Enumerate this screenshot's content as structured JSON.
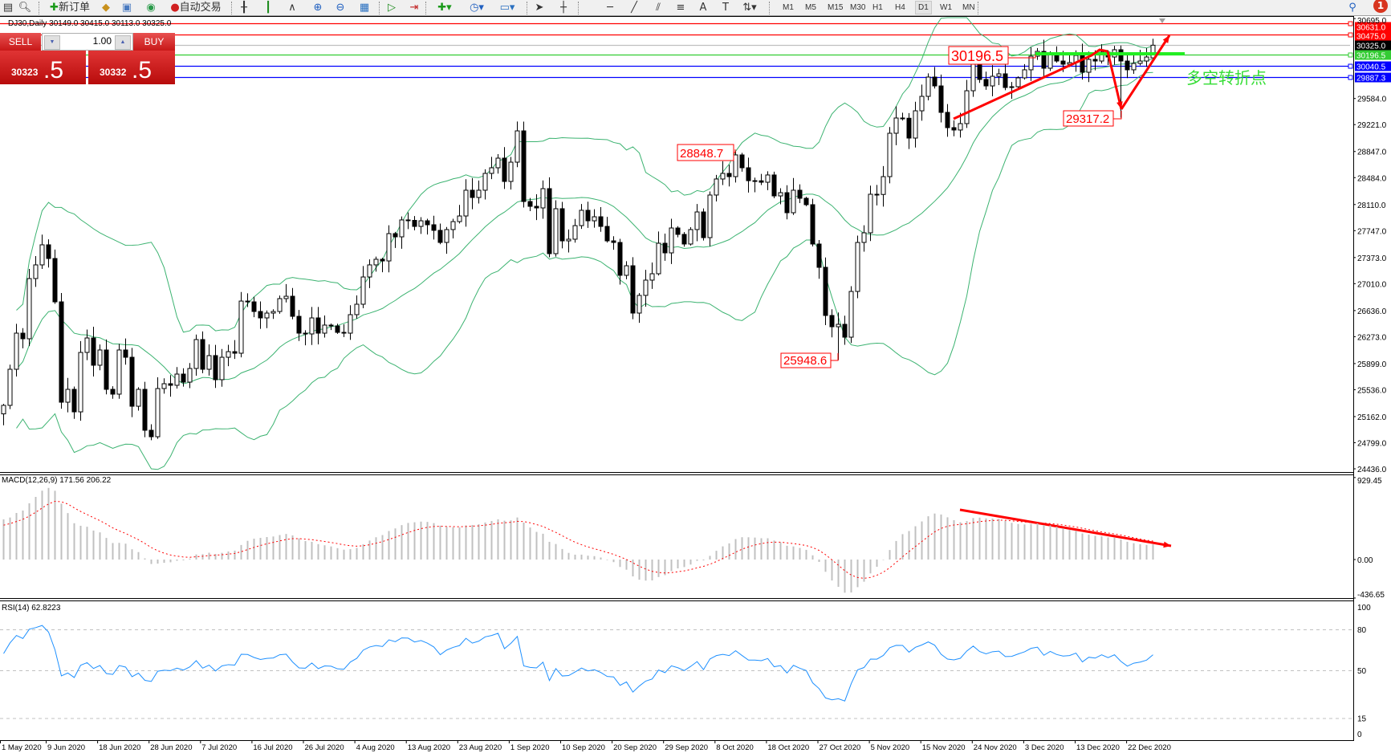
{
  "toolbar": {
    "new_order": "新订单",
    "auto_trading": "自动交易",
    "timeframes": [
      "M1",
      "M5",
      "M15",
      "M30",
      "H1",
      "H4",
      "D1",
      "W1",
      "MN"
    ],
    "active_timeframe": "D1",
    "notification_count": "1",
    "icons": [
      "new-chart-icon",
      "navigator-icon",
      "new-order-icon",
      "market-watch-icon",
      "history-icon",
      "signal-icon",
      "auto-trading-icon",
      "bar-chart-icon",
      "candlestick-icon",
      "line-chart-icon",
      "zoom-in-icon",
      "zoom-out-icon",
      "tile-windows-icon",
      "autoscroll-icon",
      "chart-shift-icon",
      "indicators-icon",
      "periods-icon",
      "templates-icon",
      "cursor-icon",
      "crosshair-icon",
      "horizontal-line-icon",
      "trendline-icon",
      "equidistant-channel-icon",
      "fibonacci-icon",
      "text-icon",
      "text-label-icon",
      "arrows-icon",
      "search-icon",
      "notification-icon"
    ]
  },
  "chart_header": {
    "title": "DJ30,Daily  30149.0 30415.0 30113.0 30325.0"
  },
  "one_click": {
    "sell_label": "SELL",
    "buy_label": "BUY",
    "lot": "1.00",
    "sell_price_main": "30323",
    "sell_price_pip": ".5",
    "buy_price_main": "30332",
    "buy_price_pip": ".5"
  },
  "price_axis": {
    "labels": [
      "30695.0",
      "29584.0",
      "29221.0",
      "28847.0",
      "28484.0",
      "28110.0",
      "27747.0",
      "27373.0",
      "27010.0",
      "26636.0",
      "26273.0",
      "25899.0",
      "25536.0",
      "25162.0",
      "24799.0",
      "24436.0"
    ]
  },
  "levels": [
    {
      "price": 30631.0,
      "label": "30631.0",
      "color": "#ff0000",
      "box_text": "#ffffff"
    },
    {
      "price": 30475.0,
      "label": "30475.0",
      "color": "#ff0000",
      "box_text": "#ffffff"
    },
    {
      "price": 30325.0,
      "label": "30325.0",
      "color": "#c0c0c0",
      "box": "#000000",
      "box_text": "#ffffff"
    },
    {
      "price": 30196.5,
      "label": "30196.5",
      "color": "#33cc33",
      "box_text": "#ffffff"
    },
    {
      "price": 30040.5,
      "label": "30040.5",
      "color": "#0000ff",
      "box_text": "#ffffff"
    },
    {
      "price": 29887.3,
      "label": "29887.3",
      "color": "#0000ff",
      "box_text": "#ffffff"
    }
  ],
  "annotations": {
    "level_label": "30196.5",
    "high_label": "28848.7",
    "low_label": "25948.6",
    "pullback_low_label": "29317.2",
    "turning_point_text": "多空转折点",
    "accent_red": "#ff0000",
    "accent_green": "#33dd33"
  },
  "macd": {
    "label": "MACD(12,26,9) 171.56 206.22",
    "axis": [
      "929.45",
      "0.00",
      "-436.65"
    ]
  },
  "rsi": {
    "label": "RSI(14) 62.8223",
    "axis": [
      "100",
      "80",
      "50",
      "15",
      "0"
    ]
  },
  "dates": [
    "1 May 2020",
    "9 Jun 2020",
    "18 Jun 2020",
    "28 Jun 2020",
    "7 Jul 2020",
    "16 Jul 2020",
    "26 Jul 2020",
    "4 Aug 2020",
    "13 Aug 2020",
    "23 Aug 2020",
    "1 Sep 2020",
    "10 Sep 2020",
    "20 Sep 2020",
    "29 Sep 2020",
    "8 Oct 2020",
    "18 Oct 2020",
    "27 Oct 2020",
    "5 Nov 2020",
    "15 Nov 2020",
    "24 Nov 2020",
    "3 Dec 2020",
    "13 Dec 2020",
    "22 Dec 2020"
  ],
  "chart_data": {
    "type": "candlestick",
    "symbol": "DJ30",
    "timeframe": "Daily",
    "y_range": [
      24436.0,
      30695.0
    ],
    "closes": [
      25318,
      25820,
      26322,
      26244,
      27081,
      27271,
      27550,
      27360,
      26757,
      25362,
      25541,
      25228,
      26054,
      26255,
      25876,
      26088,
      25541,
      25474,
      26088,
      25987,
      25306,
      25541,
      24972,
      24882,
      25552,
      25619,
      25597,
      25753,
      25641,
      25831,
      26233,
      25820,
      26010,
      25675,
      25987,
      26065,
      26043,
      26768,
      26757,
      26623,
      26534,
      26601,
      26623,
      26802,
      26835,
      26556,
      26322,
      26311,
      26534,
      26322,
      26434,
      26422,
      26333,
      26322,
      26579,
      26724,
      27103,
      27271,
      27349,
      27326,
      27706,
      27661,
      27896,
      27890,
      27806,
      27884,
      27829,
      27751,
      27583,
      27762,
      27873,
      27951,
      28309,
      28208,
      28309,
      28543,
      28621,
      28755,
      28431,
      28699,
      29134,
      28152,
      28085,
      28063,
      28331,
      27427,
      28052,
      27605,
      27628,
      27817,
      28030,
      27884,
      27940,
      27806,
      27605,
      27583,
      27126,
      27259,
      26601,
      26847,
      27059,
      27148,
      27572,
      27438,
      27784,
      27695,
      27561,
      27762,
      28007,
      27650,
      28242,
      28465,
      28543,
      28498,
      28800,
      28621,
      28442,
      28440,
      28420,
      28521,
      28230,
      28275,
      27996,
      28309,
      28197,
      28108,
      27561,
      27237,
      26568,
      26411,
      26445,
      26266,
      26902,
      27583,
      27717,
      28253,
      28250,
      28498,
      29101,
      29313,
      29310,
      29034,
      29413,
      29614,
      29882,
      29759,
      29391,
      29179,
      29146,
      29235,
      29692,
      30061,
      29849,
      29759,
      29893,
      29927,
      29737,
      29748,
      29871,
      29983,
      30172,
      30239,
      30005,
      30195,
      30105,
      30061,
      30083,
      30183,
      29949,
      30128,
      30105,
      30228,
      30161,
      30262,
      30105,
      29983,
      30072,
      30105,
      30161,
      30325
    ],
    "first_open": 25200,
    "last_bar": {
      "open": 30149.0,
      "high": 30415.0,
      "low": 30113.0,
      "close": 30325.0
    },
    "marked_extremes": [
      {
        "bar": 115,
        "type": "high",
        "price": 28848.7
      },
      {
        "bar": 131,
        "type": "low",
        "price": 25948.6
      },
      {
        "bar": 175,
        "type": "low",
        "price": 29317.2
      }
    ],
    "indicators": [
      "Bollinger Bands",
      "MACD(12,26,9)",
      "RSI(14)"
    ],
    "rsi_levels": [
      80,
      50,
      15
    ]
  }
}
